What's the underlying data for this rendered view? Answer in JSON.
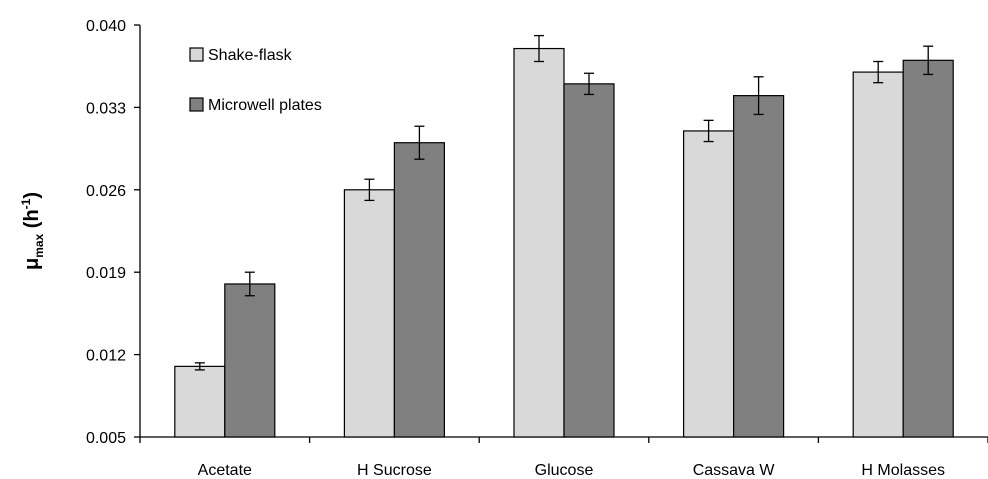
{
  "chart_data": {
    "type": "bar",
    "categories": [
      "Acetate",
      "H Sucrose",
      "Glucose",
      "Cassava W",
      "H Molasses"
    ],
    "series": [
      {
        "name": "Shake-flask",
        "color": "#d9d9d9",
        "values": [
          0.011,
          0.026,
          0.038,
          0.031,
          0.036
        ],
        "errors": [
          0.0003,
          0.0009,
          0.0011,
          0.0009,
          0.0009
        ]
      },
      {
        "name": "Microwell plates",
        "color": "#808080",
        "values": [
          0.018,
          0.03,
          0.035,
          0.034,
          0.037
        ],
        "errors": [
          0.001,
          0.0014,
          0.0009,
          0.0016,
          0.0012
        ]
      }
    ],
    "ylim": [
      0.005,
      0.04
    ],
    "yticks": [
      "0.005",
      "0.012",
      "0.019",
      "0.026",
      "0.033",
      "0.040"
    ],
    "ylabel": {
      "main": "μ",
      "sub": "max",
      "unit_open": " (h",
      "sup": "-1",
      "unit_close": ")"
    },
    "grid": false,
    "legend_position": "top-left"
  }
}
